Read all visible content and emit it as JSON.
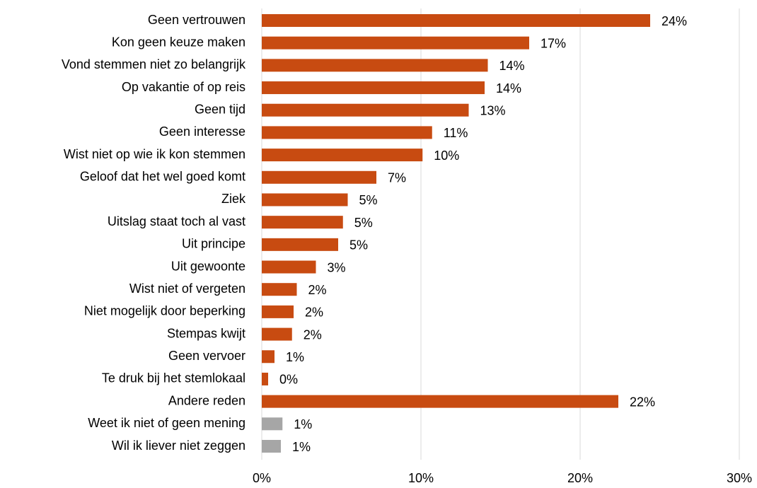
{
  "chart_data": {
    "type": "barh",
    "categories": [
      "Geen vertrouwen",
      "Kon geen keuze maken",
      "Vond stemmen niet zo belangrijk",
      "Op vakantie of op reis",
      "Geen tijd",
      "Geen interesse",
      "Wist niet op wie ik kon stemmen",
      "Geloof dat het wel goed komt",
      "Ziek",
      "Uitslag staat toch al vast",
      "Uit principe",
      "Uit gewoonte",
      "Wist niet of vergeten",
      "Niet mogelijk door beperking",
      "Stempas kwijt",
      "Geen vervoer",
      "Te druk bij het stemlokaal",
      "Andere reden",
      "Weet ik niet of geen mening",
      "Wil ik liever niet zeggen"
    ],
    "values": [
      24.4,
      16.8,
      14.2,
      14.0,
      13.0,
      10.7,
      10.1,
      7.2,
      5.4,
      5.1,
      4.8,
      3.4,
      2.2,
      2.0,
      1.9,
      0.8,
      0.4,
      22.4,
      1.3,
      1.2
    ],
    "value_labels": [
      "24%",
      "17%",
      "14%",
      "14%",
      "13%",
      "11%",
      "10%",
      "7%",
      "5%",
      "5%",
      "5%",
      "3%",
      "2%",
      "2%",
      "2%",
      "1%",
      "0%",
      "22%",
      "1%",
      "1%"
    ],
    "colors": [
      "#c84b11",
      "#c84b11",
      "#c84b11",
      "#c84b11",
      "#c84b11",
      "#c84b11",
      "#c84b11",
      "#c84b11",
      "#c84b11",
      "#c84b11",
      "#c84b11",
      "#c84b11",
      "#c84b11",
      "#c84b11",
      "#c84b11",
      "#c84b11",
      "#c84b11",
      "#c84b11",
      "#a6a6a6",
      "#a6a6a6"
    ],
    "xlim": [
      0,
      30
    ],
    "xticks": [
      {
        "value": 0,
        "label": "0%"
      },
      {
        "value": 10,
        "label": "10%"
      },
      {
        "value": 20,
        "label": "20%"
      },
      {
        "value": 30,
        "label": "30%"
      }
    ],
    "grid": true
  }
}
